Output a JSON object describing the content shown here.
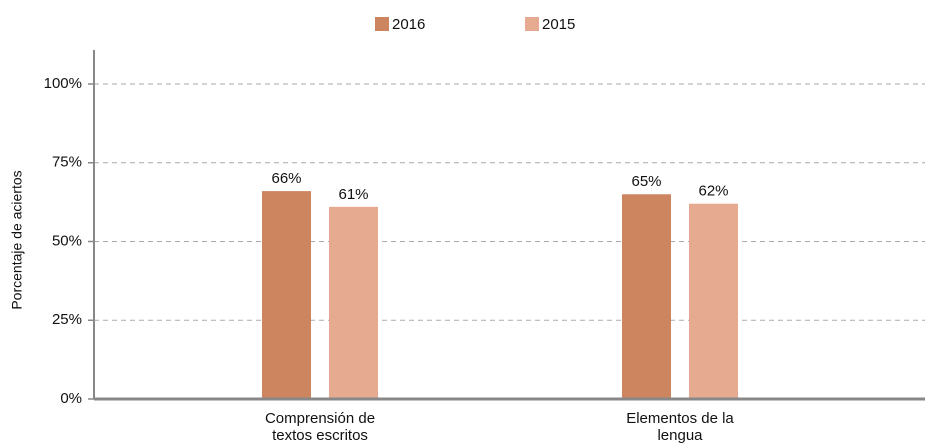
{
  "chart_data": {
    "type": "bar",
    "y_label": "Porcentaje de aciertos",
    "categories": [
      "Comprensión de textos escritos",
      "Elementos de la lengua"
    ],
    "series": [
      {
        "name": "2016",
        "color": "#cd8560",
        "values": [
          66,
          65
        ],
        "value_labels": [
          "66%",
          "65%"
        ]
      },
      {
        "name": "2015",
        "color": "#e5aa90",
        "values": [
          61,
          62
        ],
        "value_labels": [
          "61%",
          "62%"
        ]
      }
    ],
    "ylim": [
      0,
      100
    ],
    "yticks": [
      {
        "value": 0,
        "label": "0%"
      },
      {
        "value": 25,
        "label": "25%"
      },
      {
        "value": 50,
        "label": "50%"
      },
      {
        "value": 75,
        "label": "75%"
      },
      {
        "value": 100,
        "label": "100%"
      }
    ],
    "grid": true
  }
}
